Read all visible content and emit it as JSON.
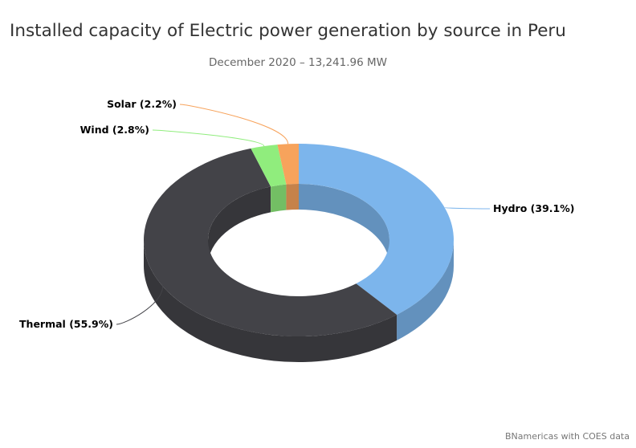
{
  "chart_data": {
    "type": "pie",
    "variant": "3d-donut",
    "title": "Installed capacity of Electric power generation by source in Peru",
    "subtitle": "December 2020 – 13,241.96 MW",
    "credit": "BNamericas with COES data",
    "slices": [
      {
        "name": "Hydro",
        "value": 39.1,
        "label": "Hydro (39.1%)",
        "color": "#7cb5ec"
      },
      {
        "name": "Thermal",
        "value": 55.9,
        "label": "Thermal (55.9%)",
        "color": "#434348"
      },
      {
        "name": "Wind",
        "value": 2.8,
        "label": "Wind (2.8%)",
        "color": "#90ed7d"
      },
      {
        "name": "Solar",
        "value": 2.2,
        "label": "Solar (2.2%)",
        "color": "#f7a35c"
      }
    ]
  }
}
